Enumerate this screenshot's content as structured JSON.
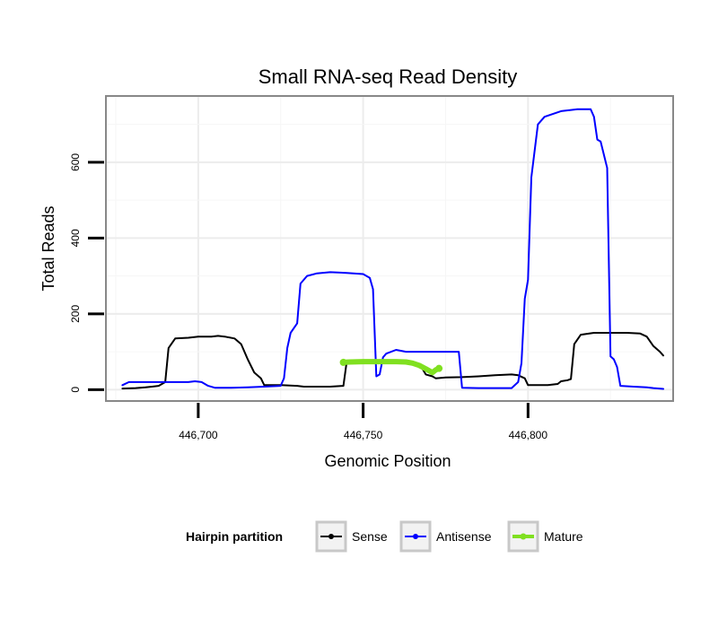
{
  "chart_data": {
    "type": "line",
    "title": "Small RNA-seq Read Density",
    "xlabel": "Genomic Position",
    "ylabel": "Total Reads",
    "xlim": [
      446672,
      446844
    ],
    "ylim": [
      -30,
      775
    ],
    "x_ticks": [
      446700,
      446750,
      446800
    ],
    "x_tick_labels": [
      "446,700",
      "446,750",
      "446,800"
    ],
    "y_ticks": [
      0,
      200,
      400,
      600
    ],
    "y_tick_labels": [
      "0",
      "200",
      "400",
      "600"
    ],
    "grid": true,
    "legend": {
      "title": "Hairpin partition",
      "position": "bottom",
      "entries": [
        {
          "name": "Sense",
          "color": "#000000"
        },
        {
          "name": "Antisense",
          "color": "#0000ff"
        },
        {
          "name": "Mature",
          "color": "#80e020"
        }
      ]
    },
    "series": [
      {
        "name": "Sense",
        "color": "#000000",
        "points": [
          [
            446677,
            3
          ],
          [
            446681,
            4
          ],
          [
            446684,
            6
          ],
          [
            446686,
            8
          ],
          [
            446688,
            10
          ],
          [
            446690,
            20
          ],
          [
            446691,
            110
          ],
          [
            446693,
            135
          ],
          [
            446697,
            137
          ],
          [
            446700,
            140
          ],
          [
            446704,
            140
          ],
          [
            446706,
            142
          ],
          [
            446708,
            140
          ],
          [
            446711,
            135
          ],
          [
            446713,
            120
          ],
          [
            446715,
            80
          ],
          [
            446717,
            45
          ],
          [
            446719,
            30
          ],
          [
            446720,
            12
          ],
          [
            446725,
            12
          ],
          [
            446730,
            10
          ],
          [
            446732,
            8
          ],
          [
            446740,
            8
          ],
          [
            446744,
            10
          ],
          [
            446745,
            72
          ],
          [
            446760,
            75
          ],
          [
            446766,
            70
          ],
          [
            446768,
            55
          ],
          [
            446769,
            40
          ],
          [
            446771,
            35
          ],
          [
            446772,
            30
          ],
          [
            446775,
            32
          ],
          [
            446780,
            33
          ],
          [
            446785,
            35
          ],
          [
            446790,
            38
          ],
          [
            446795,
            40
          ],
          [
            446797,
            38
          ],
          [
            446799,
            30
          ],
          [
            446800,
            12
          ],
          [
            446806,
            12
          ],
          [
            446809,
            15
          ],
          [
            446810,
            22
          ],
          [
            446812,
            25
          ],
          [
            446813,
            28
          ],
          [
            446814,
            120
          ],
          [
            446816,
            145
          ],
          [
            446820,
            150
          ],
          [
            446830,
            150
          ],
          [
            446834,
            148
          ],
          [
            446836,
            140
          ],
          [
            446838,
            115
          ],
          [
            446840,
            100
          ],
          [
            446841,
            90
          ]
        ]
      },
      {
        "name": "Antisense",
        "color": "#0000ff",
        "points": [
          [
            446677,
            12
          ],
          [
            446679,
            20
          ],
          [
            446683,
            20
          ],
          [
            446690,
            20
          ],
          [
            446694,
            20
          ],
          [
            446697,
            20
          ],
          [
            446699,
            22
          ],
          [
            446701,
            20
          ],
          [
            446703,
            10
          ],
          [
            446705,
            5
          ],
          [
            446710,
            5
          ],
          [
            446715,
            6
          ],
          [
            446720,
            8
          ],
          [
            446725,
            10
          ],
          [
            446726,
            30
          ],
          [
            446727,
            110
          ],
          [
            446728,
            150
          ],
          [
            446730,
            175
          ],
          [
            446731,
            280
          ],
          [
            446733,
            300
          ],
          [
            446736,
            307
          ],
          [
            446740,
            310
          ],
          [
            446745,
            308
          ],
          [
            446750,
            305
          ],
          [
            446752,
            295
          ],
          [
            446753,
            265
          ],
          [
            446754,
            35
          ],
          [
            446755,
            40
          ],
          [
            446756,
            85
          ],
          [
            446757,
            95
          ],
          [
            446760,
            105
          ],
          [
            446763,
            100
          ],
          [
            446765,
            100
          ],
          [
            446770,
            100
          ],
          [
            446775,
            100
          ],
          [
            446779,
            100
          ],
          [
            446780,
            5
          ],
          [
            446785,
            4
          ],
          [
            446790,
            4
          ],
          [
            446795,
            4
          ],
          [
            446797,
            20
          ],
          [
            446798,
            70
          ],
          [
            446799,
            240
          ],
          [
            446800,
            290
          ],
          [
            446801,
            560
          ],
          [
            446803,
            700
          ],
          [
            446805,
            720
          ],
          [
            446810,
            735
          ],
          [
            446815,
            740
          ],
          [
            446819,
            740
          ],
          [
            446820,
            720
          ],
          [
            446821,
            660
          ],
          [
            446822,
            655
          ],
          [
            446824,
            585
          ],
          [
            446825,
            88
          ],
          [
            446826,
            80
          ],
          [
            446827,
            60
          ],
          [
            446828,
            10
          ],
          [
            446832,
            8
          ],
          [
            446836,
            6
          ],
          [
            446838,
            4
          ],
          [
            446841,
            2
          ]
        ]
      },
      {
        "name": "Mature",
        "color": "#80e020",
        "points": [
          [
            446744,
            72
          ],
          [
            446746,
            73
          ],
          [
            446750,
            74
          ],
          [
            446755,
            74
          ],
          [
            446760,
            74
          ],
          [
            446763,
            73
          ],
          [
            446765,
            70
          ],
          [
            446767,
            64
          ],
          [
            446769,
            55
          ],
          [
            446771,
            45
          ],
          [
            446772,
            52
          ],
          [
            446773,
            56
          ]
        ]
      }
    ]
  }
}
